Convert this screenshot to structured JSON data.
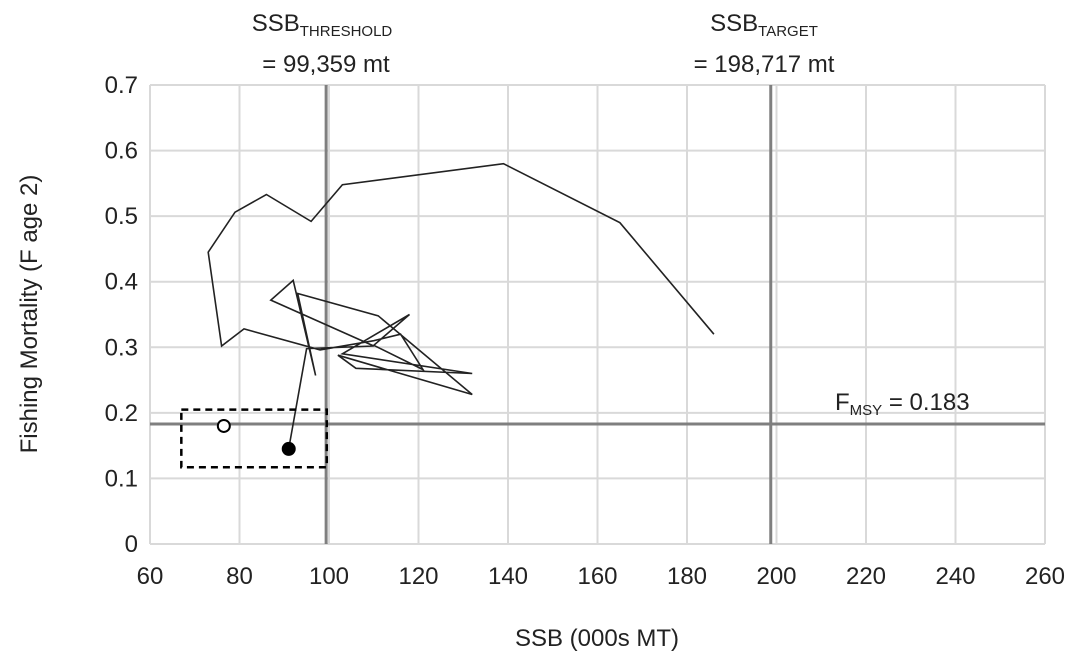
{
  "chart_data": {
    "type": "line",
    "title": "",
    "xlabel": "SSB (000s MT)",
    "ylabel": "Fishing Mortality (F age 2)",
    "xlim": [
      60,
      260
    ],
    "ylim": [
      0,
      0.7
    ],
    "x_ticks": [
      "60",
      "80",
      "100",
      "120",
      "140",
      "160",
      "180",
      "200",
      "220",
      "240",
      "260"
    ],
    "y_ticks": [
      "0",
      "0.1",
      "0.2",
      "0.3",
      "0.4",
      "0.5",
      "0.6",
      "0.7"
    ],
    "grid": true,
    "series": [
      {
        "values": [
          [
            186,
            0.32
          ],
          [
            165,
            0.49
          ],
          [
            139,
            0.58
          ],
          [
            103,
            0.548
          ],
          [
            96,
            0.492
          ],
          [
            86,
            0.533
          ],
          [
            79,
            0.506
          ],
          [
            73,
            0.445
          ],
          [
            76,
            0.302
          ],
          [
            81,
            0.328
          ],
          [
            98,
            0.296
          ],
          [
            110,
            0.31
          ],
          [
            116,
            0.32
          ],
          [
            121,
            0.266
          ],
          [
            110,
            0.303
          ],
          [
            118,
            0.35
          ],
          [
            103,
            0.29
          ],
          [
            132,
            0.26
          ],
          [
            106,
            0.268
          ],
          [
            102,
            0.288
          ],
          [
            132,
            0.228
          ],
          [
            111,
            0.348
          ],
          [
            93,
            0.382
          ],
          [
            97,
            0.257
          ],
          [
            92,
            0.402
          ],
          [
            87,
            0.372
          ],
          [
            110,
            0.302
          ],
          [
            95,
            0.298
          ],
          [
            91,
            0.145
          ]
        ]
      }
    ],
    "points": [
      {
        "x": 91,
        "y": 0.145,
        "style": "filled"
      },
      {
        "x": 76.5,
        "y": 0.18,
        "style": "open"
      }
    ],
    "uncertainty_box": {
      "x": [
        67,
        99.5
      ],
      "y": [
        0.117,
        0.205
      ]
    },
    "reference_lines": {
      "ssb_threshold": {
        "value": 99.359,
        "label_main": "SSB",
        "label_sub": "THRESHOLD",
        "label_value": "= 99,359 mt"
      },
      "ssb_target": {
        "value": 198.717,
        "label_main": "SSB",
        "label_sub": "TARGET",
        "label_value": "= 198,717 mt"
      },
      "fmsy": {
        "value": 0.183,
        "label_main": "F",
        "label_sub": "MSY",
        "label_value": " = 0.183"
      }
    },
    "colors": {
      "line": "#222222",
      "grid": "#d9d9d9",
      "reference": "#7f7f7f",
      "points": "#000000"
    }
  }
}
